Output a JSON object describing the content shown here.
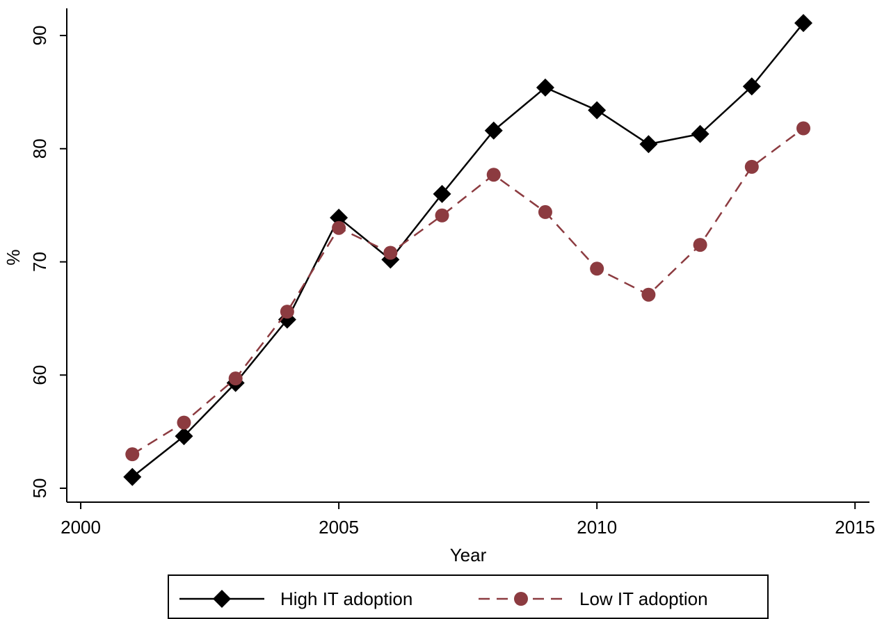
{
  "chart_data": {
    "type": "line",
    "x_label": "Year",
    "y_label": "%",
    "x": [
      2001,
      2002,
      2003,
      2004,
      2005,
      2006,
      2007,
      2008,
      2009,
      2010,
      2011,
      2012,
      2013,
      2014
    ],
    "series": [
      {
        "name": "High IT adoption",
        "color": "#000000",
        "marker": "diamond",
        "dash": "solid",
        "values": [
          51.0,
          54.6,
          59.3,
          64.9,
          73.9,
          70.2,
          76.0,
          81.6,
          85.4,
          83.4,
          80.4,
          81.3,
          85.5,
          91.1
        ]
      },
      {
        "name": "Low IT adoption",
        "color": "#8c3b40",
        "marker": "circle",
        "dash": "dashed",
        "values": [
          53.0,
          55.8,
          59.7,
          65.6,
          73.0,
          70.8,
          74.1,
          77.7,
          74.4,
          69.4,
          67.1,
          71.5,
          78.4,
          81.8
        ]
      }
    ],
    "xlim": [
      1999.73,
      2015.28
    ],
    "xticks": [
      2000,
      2005,
      2010,
      2015
    ],
    "ylim": [
      48.77,
      92.4
    ],
    "yticks": [
      50,
      60,
      70,
      80,
      90
    ],
    "grid": false,
    "legend": "bottom"
  }
}
